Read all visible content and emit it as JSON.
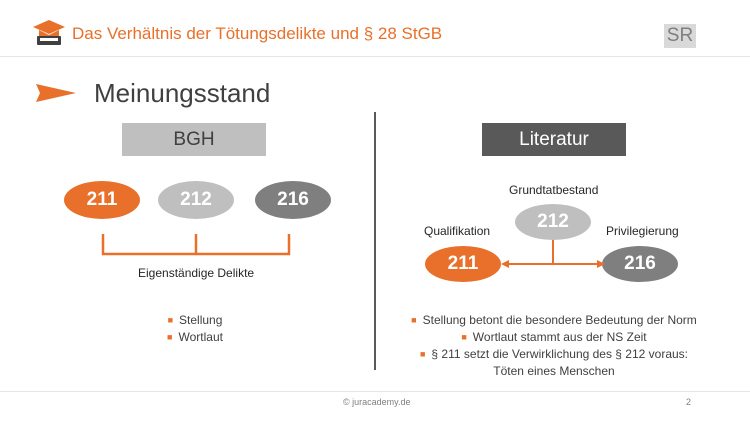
{
  "header": {
    "title": "Das Verhältnis der Tötungsdelikte und § 28 StGB",
    "badge": "SR",
    "logo_icon": "graduation-cap-book-icon"
  },
  "section": {
    "title": "Meinungsstand",
    "arrow_icon": "triangle-arrow-icon"
  },
  "bgh": {
    "heading": "BGH",
    "ovals": [
      "211",
      "212",
      "216"
    ],
    "bracket_label": "Eigenständige Delikte",
    "points": [
      "Stellung",
      "Wortlaut"
    ]
  },
  "literatur": {
    "heading": "Literatur",
    "base_label": "Grundtatbestand",
    "base": "212",
    "left_label": "Qualifikation",
    "left": "211",
    "right_label": "Privilegierung",
    "right": "216",
    "points": [
      "Stellung betont die besondere Bedeutung der Norm",
      "Wortlaut stammt aus der NS Zeit",
      "§ 211 setzt die Verwirklichung des § 212 voraus:"
    ],
    "point_continuation": "Töten eines Menschen"
  },
  "footer": {
    "copyright": "© juracademy.de",
    "page_number": "2"
  },
  "colors": {
    "accent": "#e8702a",
    "light_grey": "#bfbfbf",
    "dark_grey": "#595959",
    "mid_grey": "#7f7f7f"
  }
}
